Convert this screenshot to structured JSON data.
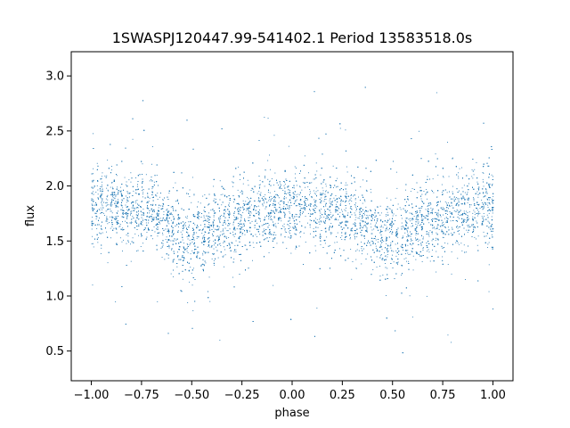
{
  "chart_data": {
    "type": "scatter",
    "title": "1SWASPJ120447.99-541402.1 Period 13583518.0s",
    "xlabel": "phase",
    "ylabel": "flux",
    "xlim": [
      -1.1,
      1.1
    ],
    "ylim": [
      0.23,
      3.22
    ],
    "xticks": [
      -1.0,
      -0.75,
      -0.5,
      -0.25,
      0.0,
      0.25,
      0.5,
      0.75,
      1.0
    ],
    "xtick_labels": [
      "−1.00",
      "−0.75",
      "−0.50",
      "−0.25",
      "0.00",
      "0.25",
      "0.50",
      "0.75",
      "1.00"
    ],
    "yticks": [
      0.5,
      1.0,
      1.5,
      2.0,
      2.5,
      3.0
    ],
    "ytick_labels": [
      "0.5",
      "1.0",
      "1.5",
      "2.0",
      "2.5",
      "3.0"
    ],
    "grid": false,
    "marker_color": "#1f77b4",
    "series": [
      {
        "description_points": "dense phase-folded light curve; clusters shown below as [phase, mean_flux]",
        "values": [
          [
            -0.98,
            1.8
          ],
          [
            -0.9,
            1.82
          ],
          [
            -0.8,
            1.78
          ],
          [
            -0.72,
            1.78
          ],
          [
            -0.65,
            1.7
          ],
          [
            -0.55,
            1.52
          ],
          [
            -0.45,
            1.58
          ],
          [
            -0.35,
            1.68
          ],
          [
            -0.28,
            1.72
          ],
          [
            -0.2,
            1.75
          ],
          [
            -0.1,
            1.78
          ],
          [
            0.0,
            1.8
          ],
          [
            0.05,
            1.82
          ],
          [
            0.1,
            1.8
          ],
          [
            0.2,
            1.78
          ],
          [
            0.3,
            1.75
          ],
          [
            0.35,
            1.7
          ],
          [
            0.45,
            1.5
          ],
          [
            0.55,
            1.58
          ],
          [
            0.65,
            1.68
          ],
          [
            0.72,
            1.72
          ],
          [
            0.8,
            1.75
          ],
          [
            0.9,
            1.78
          ],
          [
            0.98,
            1.8
          ]
        ]
      }
    ]
  }
}
